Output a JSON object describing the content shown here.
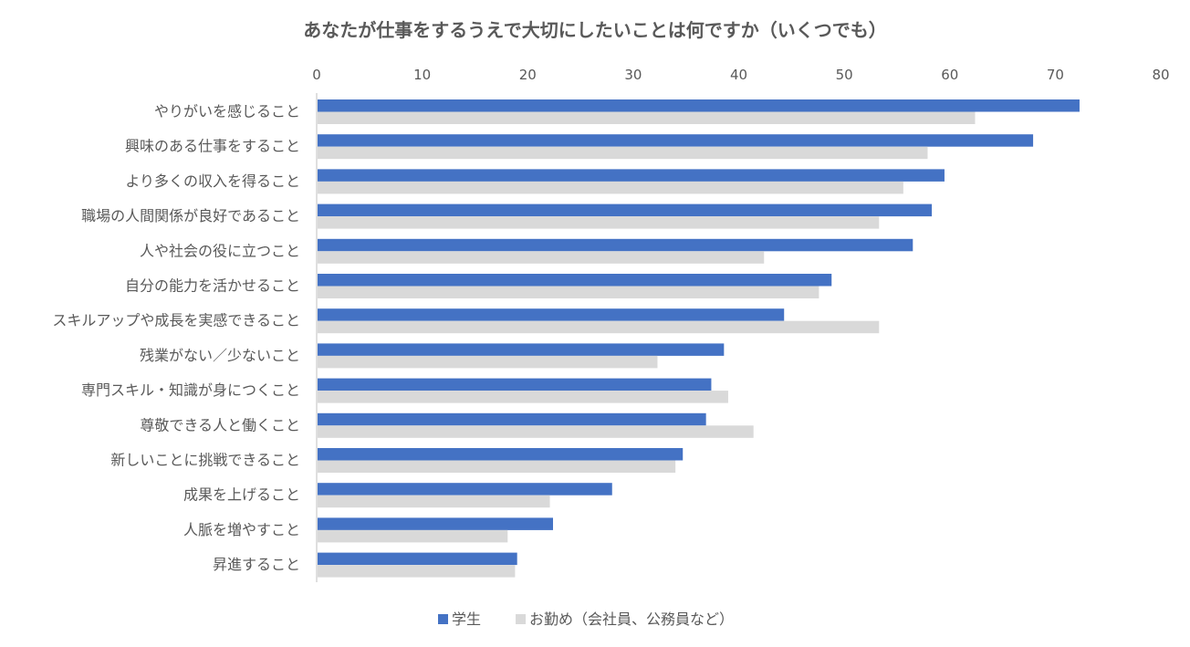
{
  "chart_data": {
    "type": "bar",
    "orientation": "horizontal",
    "title": "あなたが仕事をするうえで大切にしたいことは何ですか（いくつでも）",
    "xlim": [
      0,
      80
    ],
    "xticks": [
      "0",
      "10",
      "20",
      "30",
      "40",
      "50",
      "60",
      "70",
      "80"
    ],
    "grid": false,
    "legend_position": "bottom",
    "categories": [
      "やりがいを感じること",
      "興味のある仕事をすること",
      "より多くの収入を得ること",
      "職場の人間関係が良好であること",
      "人や社会の役に立つこと",
      "自分の能力を活かせること",
      "スキルアップや成長を実感できること",
      "残業がない／少ないこと",
      "専門スキル・知識が身につくこと",
      "尊敬できる人と働くこと",
      "新しいことに挑戦できること",
      "成果を上げること",
      "人脈を増やすこと",
      "昇進すること"
    ],
    "series": [
      {
        "name": "学生",
        "color": "#4472c4",
        "values": [
          72.3,
          67.9,
          59.5,
          58.3,
          56.5,
          48.8,
          44.3,
          38.6,
          37.4,
          36.9,
          34.7,
          28.0,
          22.4,
          19.0
        ]
      },
      {
        "name": "お勤め（会社員、公務員など）",
        "color": "#d9d9d9",
        "values": [
          62.4,
          57.9,
          55.6,
          53.3,
          42.4,
          47.6,
          53.3,
          32.3,
          39.0,
          41.4,
          34.0,
          22.1,
          18.1,
          18.8
        ]
      }
    ]
  }
}
